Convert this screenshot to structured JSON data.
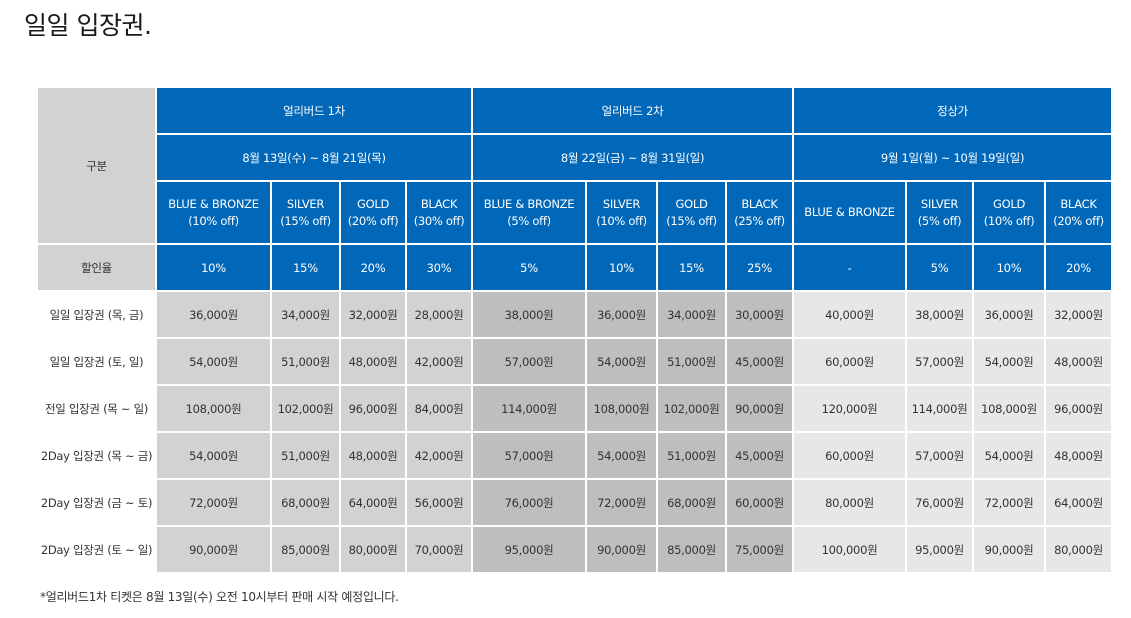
{
  "title": "일일 입장권.",
  "table": {
    "corner_label": "구분",
    "groups": [
      {
        "name": "얼리버드 1차",
        "period": "8월 13일(수) ~ 8월 21일(목)"
      },
      {
        "name": "얼리버드 2차",
        "period": "8월 22일(금) ~ 8월 31일(일)"
      },
      {
        "name": "정상가",
        "period": "9월 1일(월) ~ 10월 19일(일)"
      }
    ],
    "tiers": [
      {
        "name": "BLUE & BRONZE",
        "off": "(10% off)"
      },
      {
        "name": "SILVER",
        "off": "(15% off)"
      },
      {
        "name": "GOLD",
        "off": "(20% off)"
      },
      {
        "name": "BLACK",
        "off": "(30% off)"
      },
      {
        "name": "BLUE & BRONZE",
        "off": "(5% off)"
      },
      {
        "name": "SILVER",
        "off": "(10% off)"
      },
      {
        "name": "GOLD",
        "off": "(15% off)"
      },
      {
        "name": "BLACK",
        "off": "(25% off)"
      },
      {
        "name": "BLUE & BRONZE",
        "off": ""
      },
      {
        "name": "SILVER",
        "off": "(5% off)"
      },
      {
        "name": "GOLD",
        "off": "(10% off)"
      },
      {
        "name": "BLACK",
        "off": "(20% off)"
      }
    ],
    "discount_label": "할인율",
    "discounts": [
      "10%",
      "15%",
      "20%",
      "30%",
      "5%",
      "10%",
      "15%",
      "25%",
      "-",
      "5%",
      "10%",
      "20%"
    ],
    "rows": [
      {
        "label": "일일 입장권 (목, 금)",
        "values": [
          "36,000원",
          "34,000원",
          "32,000원",
          "28,000원",
          "38,000원",
          "36,000원",
          "34,000원",
          "30,000원",
          "40,000원",
          "38,000원",
          "36,000원",
          "32,000원"
        ]
      },
      {
        "label": "일일 입장권 (토, 일)",
        "values": [
          "54,000원",
          "51,000원",
          "48,000원",
          "42,000원",
          "57,000원",
          "54,000원",
          "51,000원",
          "45,000원",
          "60,000원",
          "57,000원",
          "54,000원",
          "48,000원"
        ]
      },
      {
        "label": "전일 입장권 (목 ~ 일)",
        "values": [
          "108,000원",
          "102,000원",
          "96,000원",
          "84,000원",
          "114,000원",
          "108,000원",
          "102,000원",
          "90,000원",
          "120,000원",
          "114,000원",
          "108,000원",
          "96,000원"
        ]
      },
      {
        "label": "2Day 입장권 (목 ~ 금)",
        "values": [
          "54,000원",
          "51,000원",
          "48,000원",
          "42,000원",
          "57,000원",
          "54,000원",
          "51,000원",
          "45,000원",
          "60,000원",
          "57,000원",
          "54,000원",
          "48,000원"
        ]
      },
      {
        "label": "2Day 입장권 (금 ~ 토)",
        "values": [
          "72,000원",
          "68,000원",
          "64,000원",
          "56,000원",
          "76,000원",
          "72,000원",
          "68,000원",
          "60,000원",
          "80,000원",
          "76,000원",
          "72,000원",
          "64,000원"
        ]
      },
      {
        "label": "2Day 입장권 (토 ~ 일)",
        "values": [
          "90,000원",
          "85,000원",
          "80,000원",
          "70,000원",
          "95,000원",
          "90,000원",
          "85,000원",
          "75,000원",
          "100,000원",
          "95,000원",
          "90,000원",
          "80,000원"
        ]
      }
    ]
  },
  "footnote": "*얼리버드1차 티켓은 8월 13일(수) 오전 10시부터 판매 시작 예정입니다."
}
